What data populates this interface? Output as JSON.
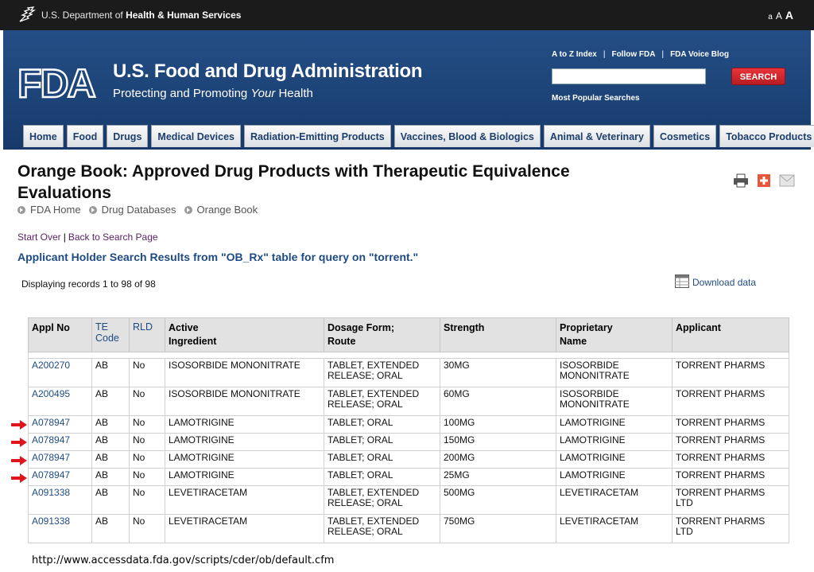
{
  "hhs_bar": {
    "dept_prefix": "U.S. Department of",
    "dept_name": "Health & Human Services",
    "text_size": {
      "small": "a",
      "medium": "A",
      "large": "A"
    }
  },
  "header": {
    "logo_text": "FDA",
    "agency_name": "U.S. Food and Drug Administration",
    "tagline_pre": "Protecting and Promoting",
    "tagline_em": "Your",
    "tagline_post": "Health",
    "util_links": [
      "A to Z Index",
      "Follow FDA",
      "FDA Voice Blog"
    ],
    "search": {
      "placeholder": "",
      "value": "",
      "button_label": "SEARCH"
    },
    "popular_searches": "Most Popular Searches"
  },
  "nav": {
    "tabs": [
      "Home",
      "Food",
      "Drugs",
      "Medical Devices",
      "Radiation-Emitting Products",
      "Vaccines, Blood & Biologics",
      "Animal & Veterinary",
      "Cosmetics",
      "Tobacco Products"
    ]
  },
  "page": {
    "title": "Orange Book: Approved Drug Products with Therapeutic Equivalence Evaluations",
    "breadcrumb": [
      "FDA Home",
      "Drug Databases",
      "Orange Book"
    ],
    "start_over": "Start Over",
    "back_to_search": "Back to Search Page",
    "results_heading": "Applicant Holder Search Results from \"OB_Rx\" table for query on \"torrent.\"",
    "record_count": "Displaying records 1 to 98 of 98",
    "download_label": "Download data"
  },
  "table": {
    "headers": {
      "appl_no": "Appl No",
      "te_code_1": "TE",
      "te_code_2": "Code",
      "rld": "RLD",
      "ingredient_1": "Active",
      "ingredient_2": "Ingredient",
      "dosage_1": "Dosage Form;",
      "dosage_2": "Route",
      "strength": "Strength",
      "name_1": "Proprietary",
      "name_2": "Name",
      "applicant": "Applicant"
    },
    "rows": [
      {
        "appl_no": "A200270",
        "te": "AB",
        "rld": "No",
        "ingredient": "ISOSORBIDE MONONITRATE",
        "dosage_1": "TABLET, EXTENDED",
        "dosage_2": "RELEASE; ORAL",
        "strength": "30MG",
        "name_1": "ISOSORBIDE",
        "name_2": "MONONITRATE",
        "applicant_1": "TORRENT PHARMS",
        "applicant_2": ""
      },
      {
        "appl_no": "A200495",
        "te": "AB",
        "rld": "No",
        "ingredient": "ISOSORBIDE MONONITRATE",
        "dosage_1": "TABLET, EXTENDED",
        "dosage_2": "RELEASE; ORAL",
        "strength": "60MG",
        "name_1": "ISOSORBIDE",
        "name_2": "MONONITRATE",
        "applicant_1": "TORRENT PHARMS",
        "applicant_2": ""
      },
      {
        "appl_no": "A078947",
        "te": "AB",
        "rld": "No",
        "ingredient": "LAMOTRIGINE",
        "dosage_1": "TABLET; ORAL",
        "dosage_2": "",
        "strength": "100MG",
        "name_1": "LAMOTRIGINE",
        "name_2": "",
        "applicant_1": "TORRENT PHARMS",
        "applicant_2": ""
      },
      {
        "appl_no": "A078947",
        "te": "AB",
        "rld": "No",
        "ingredient": "LAMOTRIGINE",
        "dosage_1": "TABLET; ORAL",
        "dosage_2": "",
        "strength": "150MG",
        "name_1": "LAMOTRIGINE",
        "name_2": "",
        "applicant_1": "TORRENT PHARMS",
        "applicant_2": ""
      },
      {
        "appl_no": "A078947",
        "te": "AB",
        "rld": "No",
        "ingredient": "LAMOTRIGINE",
        "dosage_1": "TABLET; ORAL",
        "dosage_2": "",
        "strength": "200MG",
        "name_1": "LAMOTRIGINE",
        "name_2": "",
        "applicant_1": "TORRENT PHARMS",
        "applicant_2": ""
      },
      {
        "appl_no": "A078947",
        "te": "AB",
        "rld": "No",
        "ingredient": "LAMOTRIGINE",
        "dosage_1": "TABLET; ORAL",
        "dosage_2": "",
        "strength": "25MG",
        "name_1": "LAMOTRIGINE",
        "name_2": "",
        "applicant_1": "TORRENT PHARMS",
        "applicant_2": ""
      },
      {
        "appl_no": "A091338",
        "te": "AB",
        "rld": "No",
        "ingredient": "LEVETIRACETAM",
        "dosage_1": "TABLET, EXTENDED",
        "dosage_2": "RELEASE; ORAL",
        "strength": "500MG",
        "name_1": "LEVETIRACETAM",
        "name_2": "",
        "applicant_1": "TORRENT PHARMS",
        "applicant_2": "LTD"
      },
      {
        "appl_no": "A091338",
        "te": "AB",
        "rld": "No",
        "ingredient": "LEVETIRACETAM",
        "dosage_1": "TABLET, EXTENDED",
        "dosage_2": "RELEASE; ORAL",
        "strength": "750MG",
        "name_1": "LEVETIRACETAM",
        "name_2": "",
        "applicant_1": "TORRENT PHARMS",
        "applicant_2": "LTD"
      }
    ]
  },
  "colors": {
    "arrow": "#e0151b",
    "header_blue": "#1d4478",
    "link_blue": "#1f4b83"
  },
  "caption": {
    "url": "http://www.accessdata.fda.gov/scripts/cder/ob/default.cfm"
  }
}
